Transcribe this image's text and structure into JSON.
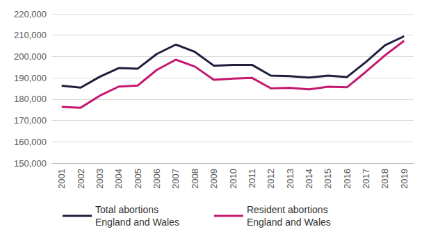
{
  "chart_data": {
    "type": "line",
    "categories": [
      "2001",
      "2002",
      "2003",
      "2004",
      "2005",
      "2006",
      "2007",
      "2008",
      "2009",
      "2010",
      "2011",
      "2012",
      "2013",
      "2014",
      "2015",
      "2016",
      "2017",
      "2018",
      "2019"
    ],
    "series": [
      {
        "name": "Total abortions\nEngland and Wales",
        "color": "#1f1f3d",
        "values": [
          186300,
          185400,
          190500,
          194600,
          194300,
          201200,
          205600,
          202200,
          195700,
          196100,
          196100,
          191000,
          190800,
          190100,
          191000,
          190400,
          197500,
          205300,
          209500
        ]
      },
      {
        "name": "Resident abortions\nEngland and Wales",
        "color": "#c4186e",
        "values": [
          176400,
          176000,
          181600,
          185900,
          186400,
          193700,
          198500,
          195300,
          189100,
          189600,
          190000,
          185100,
          185300,
          184600,
          185800,
          185600,
          192900,
          200600,
          207400
        ]
      }
    ],
    "ylim": [
      150000,
      220000
    ],
    "yticks": [
      {
        "value": 150000,
        "label": "150,000"
      },
      {
        "value": 160000,
        "label": "160,000"
      },
      {
        "value": 170000,
        "label": "170,000"
      },
      {
        "value": 180000,
        "label": "180,000"
      },
      {
        "value": 190000,
        "label": "190,000"
      },
      {
        "value": 200000,
        "label": "200,000"
      },
      {
        "value": 210000,
        "label": "210,000"
      },
      {
        "value": 220000,
        "label": "220,000"
      }
    ],
    "grid": true,
    "legend": "bottom"
  }
}
